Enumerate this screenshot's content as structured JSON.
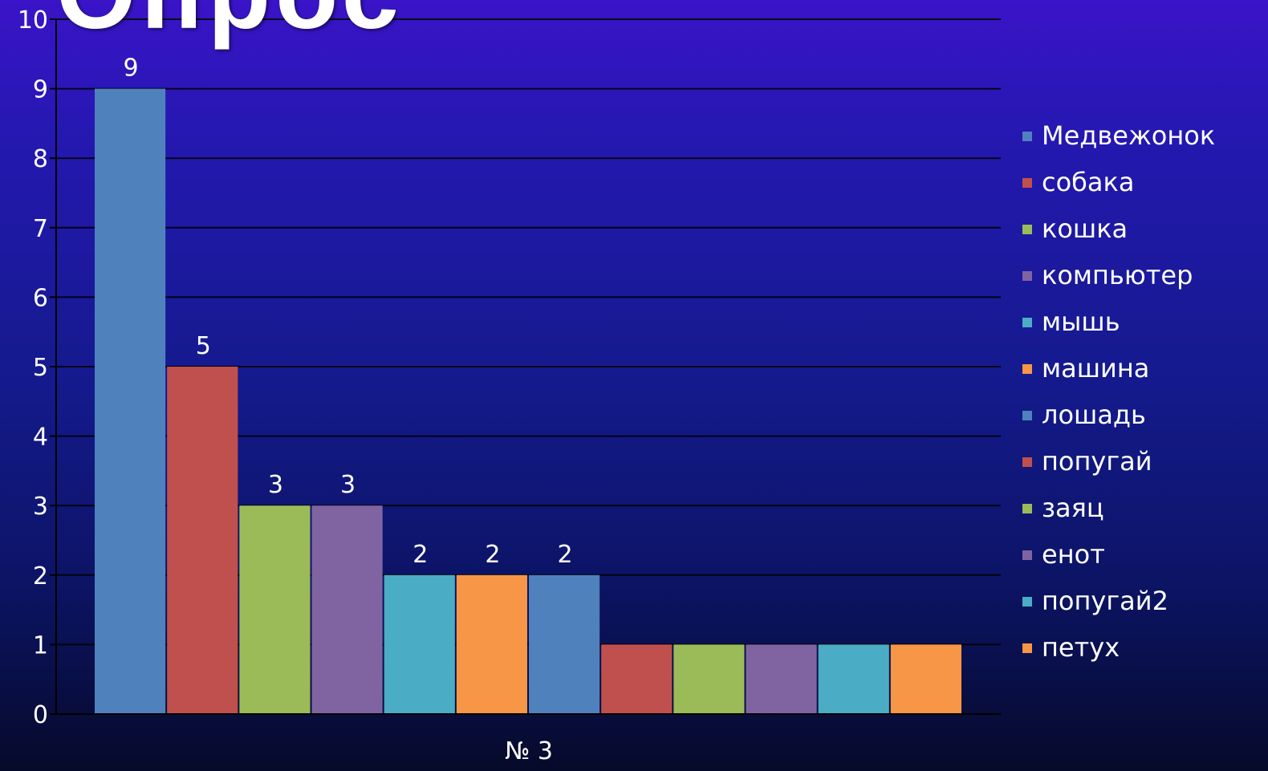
{
  "title": "Опрос",
  "chart_data": {
    "type": "bar",
    "categories": [
      "№ 3"
    ],
    "ylim": [
      0,
      10
    ],
    "yticks": [
      0,
      1,
      2,
      3,
      4,
      5,
      6,
      7,
      8,
      9,
      10
    ],
    "grid": true,
    "legend_position": "right",
    "series": [
      {
        "name": "Медвежонок",
        "values": [
          9
        ],
        "label": "9",
        "color": "#4f81bd"
      },
      {
        "name": "собака",
        "values": [
          5
        ],
        "label": "5",
        "color": "#c0504d"
      },
      {
        "name": "кошка",
        "values": [
          3
        ],
        "label": "3",
        "color": "#9bbb59"
      },
      {
        "name": "компьютер",
        "values": [
          3
        ],
        "label": "3",
        "color": "#8064a2"
      },
      {
        "name": "мышь",
        "values": [
          2
        ],
        "label": "2",
        "color": "#4bacc6"
      },
      {
        "name": "машина",
        "values": [
          2
        ],
        "label": "2",
        "color": "#f79646"
      },
      {
        "name": "лошадь",
        "values": [
          2
        ],
        "label": "2",
        "color": "#4f81bd"
      },
      {
        "name": "попугай",
        "values": [
          1
        ],
        "label": "",
        "color": "#c0504d"
      },
      {
        "name": "заяц",
        "values": [
          1
        ],
        "label": "",
        "color": "#9bbb59"
      },
      {
        "name": "енот",
        "values": [
          1
        ],
        "label": "",
        "color": "#8064a2"
      },
      {
        "name": "попугай2",
        "values": [
          1
        ],
        "label": "",
        "color": "#4bacc6"
      },
      {
        "name": "петух",
        "values": [
          1
        ],
        "label": "",
        "color": "#f79646"
      }
    ]
  }
}
